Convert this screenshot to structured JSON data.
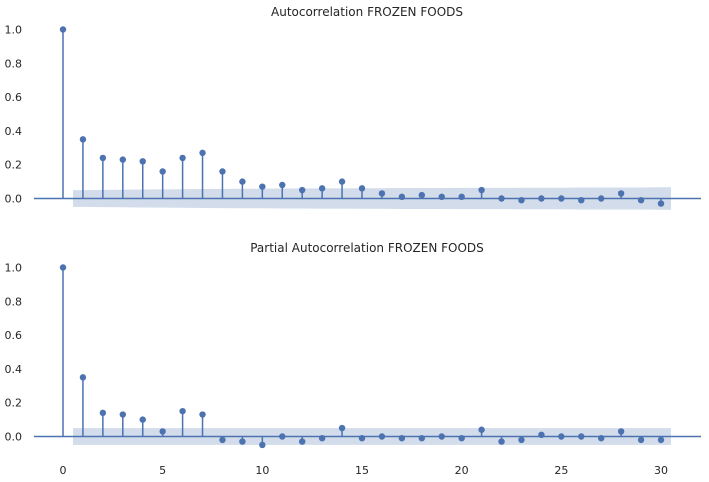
{
  "chart_data": [
    {
      "type": "stem",
      "title": "Autocorrelation FROZEN FOODS",
      "xlim": [
        -1.5,
        31.5
      ],
      "ylim": [
        -0.1,
        1.05
      ],
      "yticks": [
        0.0,
        0.2,
        0.4,
        0.6,
        0.8,
        1.0
      ],
      "ytick_labels": [
        "0.0",
        "0.2",
        "0.4",
        "0.6",
        "0.8",
        "1.0"
      ],
      "lags": [
        0,
        1,
        2,
        3,
        4,
        5,
        6,
        7,
        8,
        9,
        10,
        11,
        12,
        13,
        14,
        15,
        16,
        17,
        18,
        19,
        20,
        21,
        22,
        23,
        24,
        25,
        26,
        27,
        28,
        29,
        30
      ],
      "values": [
        1.0,
        0.35,
        0.24,
        0.23,
        0.22,
        0.16,
        0.24,
        0.27,
        0.16,
        0.1,
        0.07,
        0.08,
        0.05,
        0.06,
        0.1,
        0.06,
        0.03,
        0.01,
        0.02,
        0.01,
        0.01,
        0.05,
        0.0,
        -0.01,
        0.0,
        0.0,
        -0.01,
        0.0,
        0.03,
        -0.01,
        -0.03
      ],
      "confint_upper": [
        0.05,
        0.05,
        0.051,
        0.052,
        0.053,
        0.054,
        0.055,
        0.056,
        0.057,
        0.058,
        0.058,
        0.059,
        0.059,
        0.06,
        0.06,
        0.061,
        0.061,
        0.062,
        0.062,
        0.062,
        0.063,
        0.063,
        0.063,
        0.064,
        0.064,
        0.064,
        0.065,
        0.065,
        0.065,
        0.065,
        0.066
      ]
    },
    {
      "type": "stem",
      "title": "Partial Autocorrelation FROZEN FOODS",
      "xlim": [
        -1.5,
        31.5
      ],
      "ylim": [
        -0.1,
        1.05
      ],
      "yticks": [
        0.0,
        0.2,
        0.4,
        0.6,
        0.8,
        1.0
      ],
      "ytick_labels": [
        "0.0",
        "0.2",
        "0.4",
        "0.6",
        "0.8",
        "1.0"
      ],
      "xticks": [
        0,
        5,
        10,
        15,
        20,
        25,
        30
      ],
      "xtick_labels": [
        "0",
        "5",
        "10",
        "15",
        "20",
        "25",
        "30"
      ],
      "lags": [
        0,
        1,
        2,
        3,
        4,
        5,
        6,
        7,
        8,
        9,
        10,
        11,
        12,
        13,
        14,
        15,
        16,
        17,
        18,
        19,
        20,
        21,
        22,
        23,
        24,
        25,
        26,
        27,
        28,
        29,
        30
      ],
      "values": [
        1.0,
        0.35,
        0.14,
        0.13,
        0.1,
        0.03,
        0.15,
        0.13,
        -0.02,
        -0.03,
        -0.05,
        0.0,
        -0.03,
        -0.01,
        0.05,
        -0.01,
        0.0,
        -0.01,
        -0.01,
        0.0,
        -0.01,
        0.04,
        -0.03,
        -0.02,
        0.01,
        0.0,
        0.0,
        -0.01,
        0.03,
        -0.02,
        -0.02
      ],
      "confint_upper": 0.05
    }
  ],
  "style": {
    "stem_color": "#4c72b0",
    "band_color": "#4c72b0",
    "band_opacity": 0.25,
    "text_color": "#262626"
  }
}
